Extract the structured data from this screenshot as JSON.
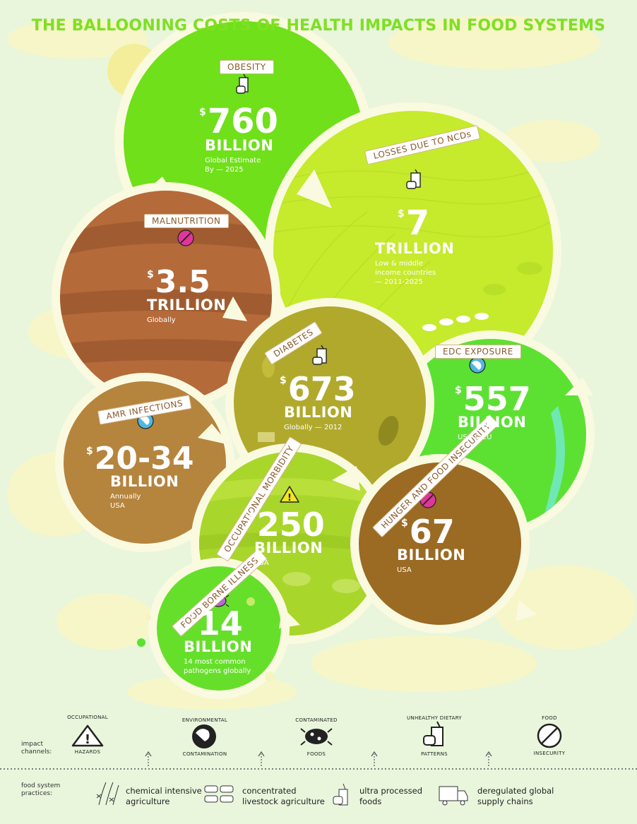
{
  "title": "THE BALLOONING COSTS OF HEALTH IMPACTS IN FOOD SYSTEMS",
  "colors": {
    "background": "#e9f6dc",
    "title": "#7ee022",
    "obesity": "#6fe019",
    "ncds": "#c6ea2c",
    "malnutrition": "#b56a3a",
    "diabetes": "#b0a92c",
    "edc": "#5ce132",
    "amr": "#b5843d",
    "occupational": "#a9d62b",
    "hunger": "#9b6a23",
    "foodborne": "#66df2b",
    "label_text": "#8a5a2c"
  },
  "bubbles": {
    "obesity": {
      "label": "OBESITY",
      "currency": "$",
      "amount": "760",
      "unit": "BILLION",
      "desc1": "Global Estimate",
      "desc2": "By — 2025",
      "icon": "junk-food-icon"
    },
    "ncds": {
      "label": "LOSSES DUE TO NCDs",
      "currency": "$",
      "amount": "7",
      "unit": "TRILLION",
      "desc1": "Low & middle",
      "desc2": "income countries",
      "desc3": "— 2011-2025",
      "icon": "junk-food-icon"
    },
    "malnutrition": {
      "label": "MALNUTRITION",
      "currency": "$",
      "amount": "3.5",
      "unit": "TRILLION",
      "desc1": "Globally",
      "icon": "no-food-icon"
    },
    "diabetes": {
      "label": "DIABETES",
      "currency": "$",
      "amount": "673",
      "unit": "BILLION",
      "desc1": "Globally — 2012",
      "icon": "junk-food-icon"
    },
    "edc": {
      "label": "EDC EXPOSURE",
      "currency": "$",
      "amount": "557",
      "unit": "BILLION",
      "desc1": "USA & EU",
      "icon": "contaminated-globe-icon"
    },
    "amr": {
      "label": "AMR INFECTIONS",
      "currency": "$",
      "amount": "20-34",
      "unit": "BILLION",
      "desc1": "Annually",
      "desc2": "USA",
      "icon": "contaminated-globe-icon"
    },
    "occupational": {
      "label": "OCCUPATIONAL MORBIDITY",
      "currency": "$",
      "amount": "250",
      "unit": "BILLION",
      "desc1": "USA",
      "icon": "hazard-icon"
    },
    "hunger": {
      "label": "HUNGER AND FOOD INSECURITY",
      "currency": "$",
      "amount": "67",
      "unit": "BILLION",
      "desc1": "USA",
      "icon": "no-food-icon"
    },
    "foodborne": {
      "label": "FOOD BORNE ILLNESS",
      "currency": "$",
      "amount": "14",
      "unit": "BILLION",
      "desc1": "14 most common",
      "desc2": "pathogens globally",
      "icon": "pathogen-icon"
    }
  },
  "legend": {
    "impact_label": "impact channels:",
    "practice_label": "food system practices:",
    "channels": [
      {
        "top": "OCCUPATIONAL",
        "bottom": "HAZARDS",
        "icon": "hazard-icon"
      },
      {
        "top": "ENVIRONMENTAL",
        "bottom": "CONTAMINATION",
        "icon": "contaminated-globe-icon"
      },
      {
        "top": "CONTAMINATED",
        "bottom": "FOODS",
        "icon": "pathogen-icon"
      },
      {
        "top": "UNHEALTHY DIETARY",
        "bottom": "PATTERNS",
        "icon": "junk-food-icon"
      },
      {
        "top": "FOOD",
        "bottom": "INSECURITY",
        "icon": "no-food-icon"
      }
    ],
    "practices": [
      {
        "line1": "chemical intensive",
        "line2": "agriculture",
        "icon": "crops-icon"
      },
      {
        "line1": "concentrated",
        "line2": "livestock agriculture",
        "icon": "livestock-icon"
      },
      {
        "line1": "ultra processed",
        "line2": "foods",
        "icon": "processed-food-icon"
      },
      {
        "line1": "deregulated global",
        "line2": "supply chains",
        "icon": "truck-icon"
      }
    ]
  }
}
